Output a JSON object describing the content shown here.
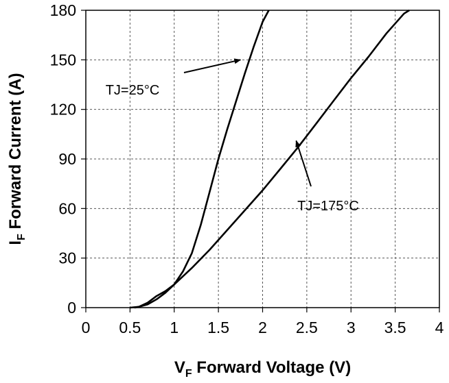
{
  "chart_data": {
    "type": "line",
    "title": "",
    "xlabel": {
      "main": "V",
      "sub": "F",
      "rest": " Forward Voltage (V)"
    },
    "ylabel": {
      "main": "I",
      "sub": "F",
      "rest": " Forward Current (A)"
    },
    "xlim": [
      0,
      4
    ],
    "ylim": [
      0,
      180
    ],
    "xticks": [
      0,
      0.5,
      1,
      1.5,
      2,
      2.5,
      3,
      3.5,
      4
    ],
    "xtick_labels": [
      "0",
      "0.5",
      "1",
      "1.5",
      "2",
      "2.5",
      "3",
      "3.5",
      "4"
    ],
    "yticks": [
      0,
      30,
      60,
      90,
      120,
      150,
      180
    ],
    "ytick_labels": [
      "0",
      "30",
      "60",
      "90",
      "120",
      "150",
      "180"
    ],
    "grid": true,
    "series": [
      {
        "name": "TJ=25°C",
        "x": [
          0.5,
          0.6,
          0.7,
          0.8,
          0.9,
          1.0,
          1.1,
          1.2,
          1.3,
          1.4,
          1.5,
          1.6,
          1.7,
          1.8,
          1.9,
          2.0,
          2.07
        ],
        "y": [
          0,
          0.5,
          2,
          5,
          9,
          14,
          22,
          33,
          50,
          70,
          90,
          108,
          125,
          142,
          158,
          173,
          180
        ]
      },
      {
        "name": "TJ=175°C",
        "x": [
          0.55,
          0.6,
          0.7,
          0.8,
          0.9,
          1.0,
          1.2,
          1.4,
          1.6,
          1.8,
          2.0,
          2.2,
          2.4,
          2.6,
          2.8,
          3.0,
          3.2,
          3.4,
          3.6,
          3.66
        ],
        "y": [
          0,
          0.5,
          3,
          7,
          10,
          14,
          24,
          35,
          47,
          59,
          71,
          84,
          97,
          111,
          125,
          139,
          152,
          166,
          178,
          180
        ]
      }
    ],
    "annotations": [
      {
        "text": "TJ=25°C",
        "points_to": [
          1.75,
          150
        ]
      },
      {
        "text": "TJ=175°C",
        "points_to": [
          2.38,
          101
        ]
      }
    ]
  }
}
